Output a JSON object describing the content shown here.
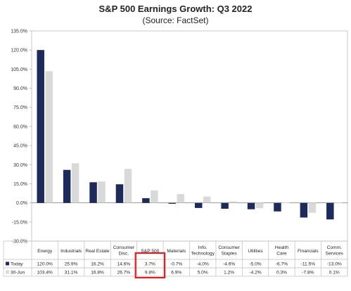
{
  "chart_data": {
    "type": "bar",
    "title": "S&P 500 Earnings Growth: Q3 2022",
    "subtitle": "(Source: FactSet)",
    "categories": [
      [
        "Energy"
      ],
      [
        "Industrials"
      ],
      [
        "Real Estate"
      ],
      [
        "Consumer",
        "Disc."
      ],
      [
        "S&P 500"
      ],
      [
        "Materials"
      ],
      [
        "Info.",
        "Technology"
      ],
      [
        "Consumer",
        "Staples"
      ],
      [
        "Utilities"
      ],
      [
        "Health",
        "Care"
      ],
      [
        "Financials"
      ],
      [
        "Comm.",
        "Services"
      ]
    ],
    "series": [
      {
        "name": "Today",
        "color": "#1c2b59",
        "values": [
          120.0,
          25.9,
          16.2,
          14.6,
          3.7,
          -0.7,
          -4.0,
          -4.6,
          -5.0,
          -6.7,
          -11.5,
          -13.0
        ],
        "labels": [
          "120.0%",
          "25.9%",
          "16.2%",
          "14.6%",
          "3.7%",
          "-0.7%",
          "-4.0%",
          "-4.6%",
          "-5.0%",
          "-6.7%",
          "-11.5%",
          "-13.0%"
        ]
      },
      {
        "name": "30-Jun",
        "color": "#d9d9d9",
        "values": [
          103.4,
          31.1,
          16.8,
          26.7,
          9.8,
          6.9,
          5.0,
          1.2,
          -4.2,
          0.3,
          -7.8,
          0.1
        ],
        "labels": [
          "103.4%",
          "31.1%",
          "16.8%",
          "26.7%",
          "9.8%",
          "6.9%",
          "5.0%",
          "1.2%",
          "-4.2%",
          "0.3%",
          "-7.8%",
          "0.1%"
        ]
      }
    ],
    "ylim": [
      -30,
      135
    ],
    "yticks": [
      -30,
      -15,
      0,
      15,
      30,
      45,
      60,
      75,
      90,
      105,
      120,
      135
    ],
    "ytick_labels": [
      "-30.0%",
      "-15.0%",
      "0.0%",
      "15.0%",
      "30.0%",
      "45.0%",
      "60.0%",
      "75.0%",
      "90.0%",
      "105.0%",
      "120.0%",
      "135.0%"
    ],
    "highlight_category": "S&P 500",
    "highlight_color": "#e02020",
    "grid": false,
    "legend": "data-table"
  }
}
